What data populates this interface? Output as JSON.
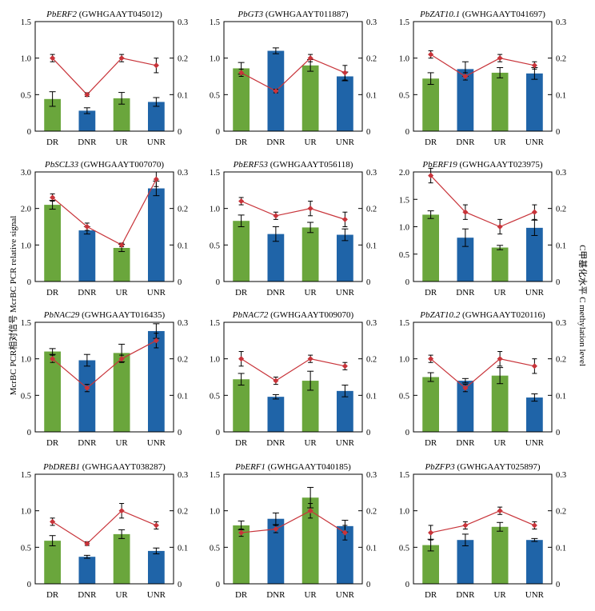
{
  "figure": {
    "left_axis_label": "McrBC PCR相对信号 McrBC PCR relative signal",
    "right_axis_label": "C甲基化水平 C methylation level",
    "colors": {
      "green_bar": "#6aa63c",
      "blue_bar": "#1f64a8",
      "line": "#c8343a",
      "axis": "#000000"
    }
  },
  "chart_data": [
    {
      "type": "bar",
      "gene": "PbERF2",
      "id": "(GWHGAAYT045012)",
      "categories": [
        "DR",
        "DNR",
        "UR",
        "UNR"
      ],
      "series": [
        {
          "values": [
            0.44,
            0.28,
            0.45,
            0.4
          ],
          "errors": [
            0.1,
            0.04,
            0.08,
            0.06
          ]
        },
        {
          "values": [
            0.2,
            0.1,
            0.2,
            0.18
          ],
          "errors": [
            0.01,
            0.005,
            0.01,
            0.02
          ]
        }
      ],
      "ylim": [
        0,
        1.5
      ],
      "y2lim": [
        0,
        0.3
      ],
      "yticks": [
        "0",
        "0.5",
        "1.0",
        "1.5"
      ],
      "y2ticks": [
        "0",
        "0.1",
        "0.2",
        "0.3"
      ]
    },
    {
      "type": "bar",
      "gene": "PbGT3",
      "id": "(GWHGAAYT011887)",
      "categories": [
        "DR",
        "DNR",
        "UR",
        "UNR"
      ],
      "series": [
        {
          "values": [
            0.86,
            1.1,
            0.9,
            0.75
          ],
          "errors": [
            0.08,
            0.04,
            0.08,
            0.06
          ]
        },
        {
          "values": [
            0.16,
            0.11,
            0.2,
            0.16
          ],
          "errors": [
            0.01,
            0.005,
            0.01,
            0.02
          ]
        }
      ],
      "ylim": [
        0,
        1.5
      ],
      "y2lim": [
        0,
        0.3
      ],
      "yticks": [
        "0",
        "0.5",
        "1.0",
        "1.5"
      ],
      "y2ticks": [
        "0",
        "0.1",
        "0.2",
        "0.3"
      ]
    },
    {
      "type": "bar",
      "gene": "PbZAT10.1",
      "id": "(GWHGAAYT041697)",
      "categories": [
        "DR",
        "DNR",
        "UR",
        "UNR"
      ],
      "series": [
        {
          "values": [
            0.72,
            0.85,
            0.8,
            0.79
          ],
          "errors": [
            0.08,
            0.1,
            0.07,
            0.08
          ]
        },
        {
          "values": [
            0.21,
            0.15,
            0.2,
            0.18
          ],
          "errors": [
            0.01,
            0.01,
            0.01,
            0.01
          ]
        }
      ],
      "ylim": [
        0,
        1.5
      ],
      "y2lim": [
        0,
        0.3
      ],
      "yticks": [
        "0",
        "0.5",
        "1.0",
        "1.5"
      ],
      "y2ticks": [
        "0",
        "0.1",
        "0.2",
        "0.3"
      ]
    },
    {
      "type": "bar",
      "gene": "PbSCL33",
      "id": "(GWHGAAYT007070)",
      "categories": [
        "DR",
        "DNR",
        "UR",
        "UNR"
      ],
      "series": [
        {
          "values": [
            2.1,
            1.4,
            0.92,
            2.55
          ],
          "errors": [
            0.12,
            0.1,
            0.1,
            0.2
          ]
        },
        {
          "values": [
            0.23,
            0.15,
            0.1,
            0.28
          ],
          "errors": [
            0.01,
            0.01,
            0.005,
            0.02
          ]
        }
      ],
      "ylim": [
        0,
        3.0
      ],
      "y2lim": [
        0,
        0.3
      ],
      "yticks": [
        "0",
        "1.0",
        "2.0",
        "3.0"
      ],
      "y2ticks": [
        "0",
        "0.1",
        "0.2",
        "0.3"
      ]
    },
    {
      "type": "bar",
      "gene": "PbERF53",
      "id": "(GWHGAAYT056118)",
      "categories": [
        "DR",
        "DNR",
        "UR",
        "UNR"
      ],
      "series": [
        {
          "values": [
            0.83,
            0.65,
            0.74,
            0.64
          ],
          "errors": [
            0.08,
            0.1,
            0.07,
            0.08
          ]
        },
        {
          "values": [
            0.22,
            0.18,
            0.2,
            0.17
          ],
          "errors": [
            0.01,
            0.01,
            0.02,
            0.02
          ]
        }
      ],
      "ylim": [
        0,
        1.5
      ],
      "y2lim": [
        0,
        0.3
      ],
      "yticks": [
        "0",
        "0.5",
        "1.0",
        "1.5"
      ],
      "y2ticks": [
        "0",
        "0.1",
        "0.2",
        "0.3"
      ]
    },
    {
      "type": "bar",
      "gene": "PbERF19",
      "id": "(GWHGAAYT023975)",
      "categories": [
        "DR",
        "DNR",
        "UR",
        "UNR"
      ],
      "series": [
        {
          "values": [
            1.22,
            0.8,
            0.62,
            0.98
          ],
          "errors": [
            0.07,
            0.16,
            0.04,
            0.14
          ]
        },
        {
          "values": [
            0.29,
            0.19,
            0.15,
            0.19
          ],
          "errors": [
            0.02,
            0.02,
            0.02,
            0.02
          ]
        }
      ],
      "ylim": [
        0,
        2.0
      ],
      "y2lim": [
        0,
        0.3
      ],
      "yticks": [
        "0",
        "0.5",
        "1.0",
        "1.5",
        "2.0"
      ],
      "y2ticks": [
        "0",
        "0.1",
        "0.2",
        "0.3"
      ]
    },
    {
      "type": "bar",
      "gene": "PbNAC29",
      "id": "(GWHGAAYT016435)",
      "categories": [
        "DR",
        "DNR",
        "UR",
        "UNR"
      ],
      "series": [
        {
          "values": [
            1.1,
            0.98,
            1.08,
            1.38
          ],
          "errors": [
            0.04,
            0.08,
            0.12,
            0.1
          ]
        },
        {
          "values": [
            0.2,
            0.12,
            0.2,
            0.25
          ],
          "errors": [
            0.01,
            0.01,
            0.01,
            0.02
          ]
        }
      ],
      "ylim": [
        0,
        1.5
      ],
      "y2lim": [
        0,
        0.3
      ],
      "yticks": [
        "0",
        "0.5",
        "1.0",
        "1.5"
      ],
      "y2ticks": [
        "0",
        "0.1",
        "0.2",
        "0.3"
      ]
    },
    {
      "type": "bar",
      "gene": "PbNAC72",
      "id": "(GWHGAAYT009070)",
      "categories": [
        "DR",
        "DNR",
        "UR",
        "UNR"
      ],
      "series": [
        {
          "values": [
            0.72,
            0.48,
            0.7,
            0.56
          ],
          "errors": [
            0.08,
            0.03,
            0.13,
            0.08
          ]
        },
        {
          "values": [
            0.2,
            0.14,
            0.2,
            0.18
          ],
          "errors": [
            0.02,
            0.01,
            0.01,
            0.01
          ]
        }
      ],
      "ylim": [
        0,
        1.5
      ],
      "y2lim": [
        0,
        0.3
      ],
      "yticks": [
        "0",
        "0.5",
        "1.0",
        "1.5"
      ],
      "y2ticks": [
        "0",
        "0.1",
        "0.2",
        "0.3"
      ]
    },
    {
      "type": "bar",
      "gene": "PbZAT10.2",
      "id": "(GWHGAAYT020116)",
      "categories": [
        "DR",
        "DNR",
        "UR",
        "UNR"
      ],
      "series": [
        {
          "values": [
            0.75,
            0.7,
            0.77,
            0.47
          ],
          "errors": [
            0.06,
            0.03,
            0.11,
            0.05
          ]
        },
        {
          "values": [
            0.2,
            0.12,
            0.2,
            0.18
          ],
          "errors": [
            0.01,
            0.01,
            0.02,
            0.02
          ]
        }
      ],
      "ylim": [
        0,
        1.5
      ],
      "y2lim": [
        0,
        0.3
      ],
      "yticks": [
        "0",
        "0.5",
        "1.0",
        "1.5"
      ],
      "y2ticks": [
        "0",
        "0.1",
        "0.2",
        "0.3"
      ]
    },
    {
      "type": "bar",
      "gene": "PbDREB1",
      "id": "(GWHGAAYT038287)",
      "categories": [
        "DR",
        "DNR",
        "UR",
        "UNR"
      ],
      "series": [
        {
          "values": [
            0.59,
            0.37,
            0.68,
            0.45
          ],
          "errors": [
            0.07,
            0.02,
            0.06,
            0.04
          ]
        },
        {
          "values": [
            0.17,
            0.11,
            0.2,
            0.16
          ],
          "errors": [
            0.01,
            0.005,
            0.02,
            0.01
          ]
        }
      ],
      "ylim": [
        0,
        1.5
      ],
      "y2lim": [
        0,
        0.3
      ],
      "yticks": [
        "0",
        "0.5",
        "1.0",
        "1.5"
      ],
      "y2ticks": [
        "0",
        "0.1",
        "0.2",
        "0.3"
      ]
    },
    {
      "type": "bar",
      "gene": "PbERF1",
      "id": "(GWHGAAYT040185)",
      "categories": [
        "DR",
        "DNR",
        "UR",
        "UNR"
      ],
      "series": [
        {
          "values": [
            0.8,
            0.89,
            1.18,
            0.79
          ],
          "errors": [
            0.06,
            0.08,
            0.14,
            0.08
          ]
        },
        {
          "values": [
            0.14,
            0.15,
            0.2,
            0.14
          ],
          "errors": [
            0.01,
            0.01,
            0.02,
            0.02
          ]
        }
      ],
      "ylim": [
        0,
        1.5
      ],
      "y2lim": [
        0,
        0.3
      ],
      "yticks": [
        "0",
        "0.5",
        "1.0",
        "1.5"
      ],
      "y2ticks": [
        "0",
        "0.1",
        "0.2",
        "0.3"
      ]
    },
    {
      "type": "bar",
      "gene": "PbZFP3",
      "id": "(GWHGAAYT025897)",
      "categories": [
        "DR",
        "DNR",
        "UR",
        "UNR"
      ],
      "series": [
        {
          "values": [
            0.53,
            0.6,
            0.78,
            0.6
          ],
          "errors": [
            0.08,
            0.08,
            0.06,
            0.02
          ]
        },
        {
          "values": [
            0.14,
            0.16,
            0.2,
            0.16
          ],
          "errors": [
            0.02,
            0.01,
            0.01,
            0.01
          ]
        }
      ],
      "ylim": [
        0,
        1.5
      ],
      "y2lim": [
        0,
        0.3
      ],
      "yticks": [
        "0",
        "0.5",
        "1.0",
        "1.5"
      ],
      "y2ticks": [
        "0",
        "0.1",
        "0.2",
        "0.3"
      ]
    }
  ]
}
